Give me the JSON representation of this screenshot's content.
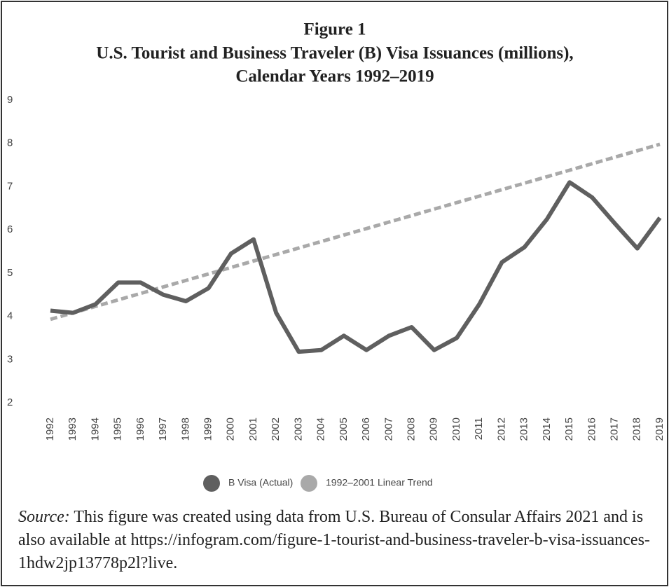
{
  "chart_data": {
    "type": "line",
    "title": "Figure 1",
    "subtitle": [
      "U.S. Tourist and Business Traveler (B) Visa Issuances (millions),",
      "Calendar Years 1992–2019"
    ],
    "categories": [
      "1992",
      "1993",
      "1994",
      "1995",
      "1996",
      "1997",
      "1998",
      "1999",
      "2000",
      "2001",
      "2002",
      "2003",
      "2004",
      "2005",
      "2006",
      "2007",
      "2008",
      "2009",
      "2010",
      "2011",
      "2012",
      "2013",
      "2014",
      "2015",
      "2016",
      "2017",
      "2018",
      "2019"
    ],
    "series": [
      {
        "name": "B Visa (Actual)",
        "color": "#5f5f5f",
        "dashed": false,
        "values": [
          4.13,
          4.08,
          4.28,
          4.78,
          4.78,
          4.5,
          4.35,
          4.65,
          5.45,
          5.78,
          4.08,
          3.18,
          3.22,
          3.55,
          3.22,
          3.55,
          3.75,
          3.22,
          3.5,
          4.28,
          5.25,
          5.6,
          6.25,
          7.1,
          6.75,
          6.15,
          5.57,
          6.28
        ]
      },
      {
        "name": "1992–2001 Linear Trend",
        "color": "#a9a9a9",
        "dashed": true,
        "values": [
          3.93,
          4.08,
          4.23,
          4.38,
          4.53,
          4.68,
          4.83,
          4.98,
          5.13,
          5.28,
          5.43,
          5.58,
          5.73,
          5.88,
          6.03,
          6.18,
          6.33,
          6.48,
          6.63,
          6.78,
          6.93,
          7.08,
          7.23,
          7.38,
          7.53,
          7.68,
          7.83,
          7.98
        ]
      }
    ],
    "ylim": [
      2,
      9
    ],
    "yticks": [
      2,
      3,
      4,
      5,
      6,
      7,
      8,
      9
    ],
    "grid": false,
    "legend": "bottom",
    "source_label": "Source:",
    "source_text": "This figure was created using data from U.S. Bureau of Consular Affairs 2021 and is also available at https://infogram.com/figure-1-tourist-and-business-traveler-b-visa-issuances-1hdw2jp13778p2l?live."
  }
}
